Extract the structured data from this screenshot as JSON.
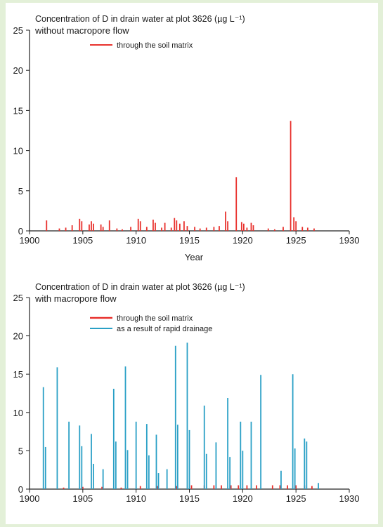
{
  "chart_data": [
    {
      "type": "bar",
      "title": "Concentration of D in drain water at plot 3626 (µg L⁻¹)",
      "subtitle": "without macropore flow",
      "xlabel": "Year",
      "ylabel": "",
      "xlim": [
        1900,
        1930
      ],
      "ylim": [
        0,
        25
      ],
      "x_ticks": [
        1900,
        1905,
        1910,
        1915,
        1920,
        1925,
        1930
      ],
      "y_ticks": [
        0,
        5,
        10,
        15,
        20,
        25
      ],
      "grid": false,
      "legend_position": "top-left",
      "series": [
        {
          "name": "through the soil matrix",
          "color": "#e8312d",
          "points": [
            [
              1901.6,
              1.3
            ],
            [
              1902.8,
              0.3
            ],
            [
              1903.4,
              0.4
            ],
            [
              1904.0,
              0.7
            ],
            [
              1904.7,
              1.5
            ],
            [
              1904.9,
              1.2
            ],
            [
              1905.6,
              0.8
            ],
            [
              1905.8,
              1.2
            ],
            [
              1906.0,
              0.9
            ],
            [
              1906.7,
              0.8
            ],
            [
              1906.9,
              0.5
            ],
            [
              1907.5,
              1.3
            ],
            [
              1908.2,
              0.3
            ],
            [
              1908.7,
              0.2
            ],
            [
              1909.5,
              0.5
            ],
            [
              1910.2,
              1.5
            ],
            [
              1910.4,
              1.2
            ],
            [
              1911.0,
              0.5
            ],
            [
              1911.6,
              1.4
            ],
            [
              1911.8,
              1.0
            ],
            [
              1912.4,
              0.4
            ],
            [
              1912.7,
              1.0
            ],
            [
              1913.3,
              0.4
            ],
            [
              1913.6,
              1.6
            ],
            [
              1913.8,
              1.3
            ],
            [
              1914.1,
              0.9
            ],
            [
              1914.5,
              1.2
            ],
            [
              1914.8,
              0.6
            ],
            [
              1915.5,
              0.5
            ],
            [
              1916.0,
              0.3
            ],
            [
              1916.6,
              0.4
            ],
            [
              1917.3,
              0.5
            ],
            [
              1917.8,
              0.6
            ],
            [
              1918.4,
              2.4
            ],
            [
              1918.6,
              1.2
            ],
            [
              1919.4,
              6.7
            ],
            [
              1919.9,
              1.1
            ],
            [
              1920.1,
              0.9
            ],
            [
              1920.4,
              0.4
            ],
            [
              1920.8,
              1.0
            ],
            [
              1921.0,
              0.7
            ],
            [
              1922.4,
              0.3
            ],
            [
              1923.0,
              0.2
            ],
            [
              1923.8,
              0.5
            ],
            [
              1924.5,
              13.7
            ],
            [
              1924.8,
              1.7
            ],
            [
              1925.0,
              1.2
            ],
            [
              1925.6,
              0.5
            ],
            [
              1926.1,
              0.4
            ],
            [
              1926.7,
              0.3
            ]
          ]
        }
      ]
    },
    {
      "type": "bar",
      "title": "Concentration of D in drain water at plot 3626 (µg L⁻¹)",
      "subtitle": "with macropore flow",
      "xlabel": "",
      "ylabel": "",
      "xlim": [
        1900,
        1930
      ],
      "ylim": [
        0,
        25
      ],
      "x_ticks": [
        1900,
        1905,
        1910,
        1915,
        1920,
        1925,
        1930
      ],
      "y_ticks": [
        0,
        5,
        10,
        15,
        20,
        25
      ],
      "grid": false,
      "legend_position": "top-left",
      "series": [
        {
          "name": "through the soil matrix",
          "color": "#e8312d",
          "points": [
            [
              1901.5,
              0.2
            ],
            [
              1903.2,
              0.2
            ],
            [
              1905.0,
              0.3
            ],
            [
              1906.8,
              0.3
            ],
            [
              1908.6,
              0.2
            ],
            [
              1910.4,
              0.4
            ],
            [
              1912.0,
              0.4
            ],
            [
              1913.8,
              0.4
            ],
            [
              1915.2,
              0.5
            ],
            [
              1916.4,
              0.5
            ],
            [
              1917.3,
              0.5
            ],
            [
              1918.0,
              0.5
            ],
            [
              1918.9,
              0.5
            ],
            [
              1919.6,
              0.5
            ],
            [
              1920.4,
              0.5
            ],
            [
              1921.3,
              0.5
            ],
            [
              1922.8,
              0.5
            ],
            [
              1923.5,
              0.5
            ],
            [
              1924.2,
              0.5
            ],
            [
              1925.0,
              0.5
            ],
            [
              1925.8,
              0.5
            ],
            [
              1926.5,
              0.4
            ]
          ]
        },
        {
          "name": "as a result of rapid drainage",
          "color": "#2aa0c6",
          "points": [
            [
              1901.3,
              13.3
            ],
            [
              1901.5,
              5.5
            ],
            [
              1902.6,
              15.9
            ],
            [
              1903.7,
              8.8
            ],
            [
              1904.7,
              8.3
            ],
            [
              1904.9,
              5.6
            ],
            [
              1905.8,
              7.2
            ],
            [
              1906.0,
              3.3
            ],
            [
              1906.9,
              2.6
            ],
            [
              1907.9,
              13.1
            ],
            [
              1908.1,
              6.2
            ],
            [
              1909.0,
              16.0
            ],
            [
              1909.2,
              5.1
            ],
            [
              1910.0,
              8.8
            ],
            [
              1911.0,
              8.5
            ],
            [
              1911.2,
              4.4
            ],
            [
              1911.9,
              7.1
            ],
            [
              1912.1,
              2.1
            ],
            [
              1912.9,
              2.6
            ],
            [
              1913.7,
              18.7
            ],
            [
              1913.9,
              8.4
            ],
            [
              1914.8,
              19.1
            ],
            [
              1915.0,
              7.7
            ],
            [
              1916.4,
              10.9
            ],
            [
              1916.6,
              4.6
            ],
            [
              1917.5,
              6.1
            ],
            [
              1918.6,
              11.9
            ],
            [
              1918.8,
              4.2
            ],
            [
              1919.8,
              8.8
            ],
            [
              1920.0,
              5.0
            ],
            [
              1920.8,
              8.8
            ],
            [
              1921.7,
              14.9
            ],
            [
              1923.6,
              2.4
            ],
            [
              1924.7,
              15.0
            ],
            [
              1924.9,
              5.3
            ],
            [
              1925.8,
              6.6
            ],
            [
              1926.0,
              6.2
            ],
            [
              1927.1,
              0.8
            ]
          ]
        }
      ]
    }
  ]
}
